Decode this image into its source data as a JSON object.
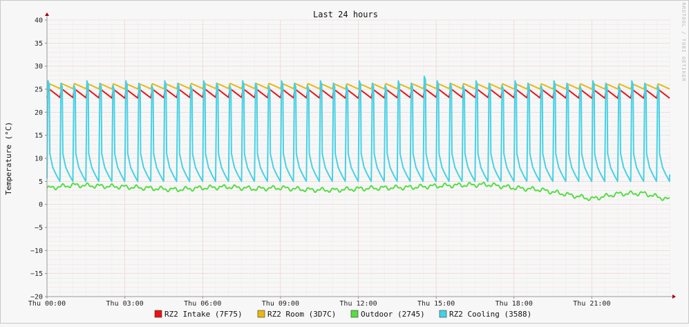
{
  "chart_data": {
    "type": "line",
    "title": "Last 24 hours",
    "ylabel": "Temperature (°C)",
    "watermark": "RRDTOOL / TOBI OETIKER",
    "ylim": [
      -20,
      40
    ],
    "yticks": [
      40,
      35,
      30,
      25,
      20,
      15,
      10,
      5,
      0,
      -5,
      -10,
      -15,
      -20
    ],
    "xlim": [
      0,
      24
    ],
    "x_unit": "hours since Thu 00:00",
    "xticks": [
      {
        "value": 0,
        "label": "Thu 00:00"
      },
      {
        "value": 3,
        "label": "Thu 03:00"
      },
      {
        "value": 6,
        "label": "Thu 06:00"
      },
      {
        "value": 9,
        "label": "Thu 09:00"
      },
      {
        "value": 12,
        "label": "Thu 12:00"
      },
      {
        "value": 15,
        "label": "Thu 15:00"
      },
      {
        "value": 18,
        "label": "Thu 18:00"
      },
      {
        "value": 21,
        "label": "Thu 21:00"
      }
    ],
    "grid": true,
    "legend_placement": "bottom",
    "series": [
      {
        "name": "RZ2 Intake (7F75)",
        "color": "#ee1111",
        "pattern": "sawtooth",
        "cycles": 48,
        "min": 23.3,
        "max": 25.2,
        "x": [
          0,
          3,
          6,
          9,
          12,
          15,
          18,
          21,
          24
        ],
        "values": [
          24.2,
          24.0,
          24.2,
          24.1,
          24.0,
          24.2,
          24.1,
          24.0,
          24.0
        ]
      },
      {
        "name": "RZ2 Room (3D7C)",
        "color": "#e8b810",
        "pattern": "sawtooth",
        "cycles": 48,
        "min": 25.1,
        "max": 26.2,
        "x": [
          0,
          3,
          6,
          9,
          12,
          15,
          18,
          21,
          24
        ],
        "values": [
          25.7,
          25.6,
          25.7,
          25.7,
          25.6,
          25.7,
          25.6,
          25.6,
          25.6
        ]
      },
      {
        "name": "Outdoor (2745)",
        "color": "#55dd44",
        "pattern": "smooth",
        "x": [
          0,
          1,
          2,
          3,
          4,
          5,
          6,
          7,
          8,
          9,
          10,
          11,
          12,
          13,
          14,
          15,
          16,
          17,
          18,
          19,
          20,
          21,
          22,
          23,
          24
        ],
        "values": [
          3.5,
          4.2,
          4.0,
          3.8,
          3.5,
          3.2,
          3.6,
          3.8,
          3.4,
          3.6,
          3.2,
          3.1,
          3.4,
          3.6,
          3.7,
          4.0,
          4.2,
          4.3,
          3.6,
          3.2,
          2.2,
          1.2,
          2.3,
          2.4,
          1.0
        ]
      },
      {
        "name": "RZ2 Cooling (3588)",
        "color": "#44d2e6",
        "pattern": "cycle",
        "cycles": 48,
        "min": 5.0,
        "max": 26.8,
        "peak_max": 27.8
      }
    ]
  }
}
